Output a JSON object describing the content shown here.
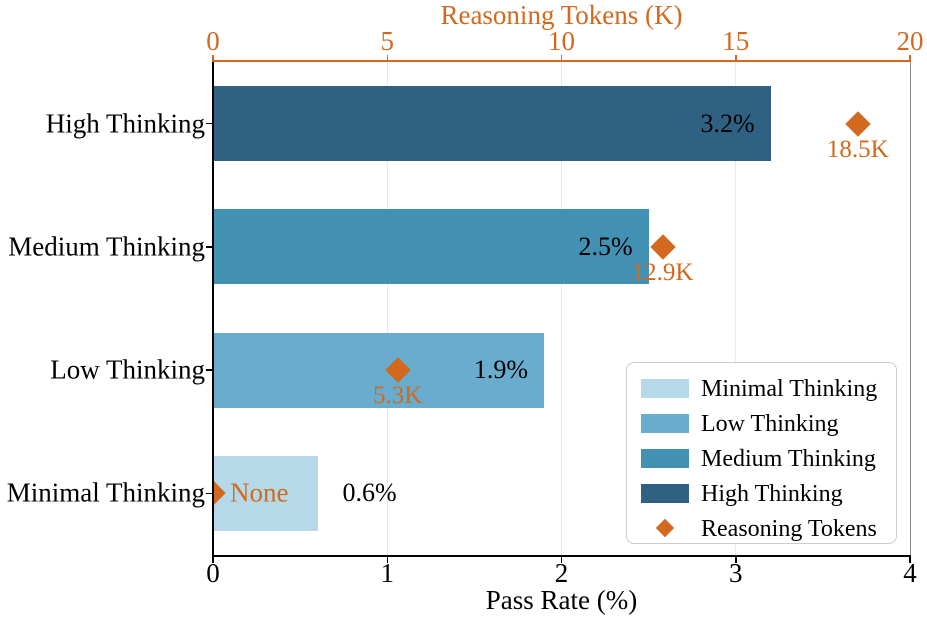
{
  "chart_data": {
    "type": "bar",
    "orientation": "horizontal",
    "title_top": "Reasoning Tokens (K)",
    "xlabel_bottom": "Pass Rate (%)",
    "rows": [
      {
        "category": "High Thinking",
        "pass_rate": 3.2,
        "pass_rate_label": "3.2%",
        "reasoning_tokens_k": 18.5,
        "tokens_label": "18.5K",
        "bar_color": "#2F6183"
      },
      {
        "category": "Medium Thinking",
        "pass_rate": 2.5,
        "pass_rate_label": "2.5%",
        "reasoning_tokens_k": 12.9,
        "tokens_label": "12.9K",
        "bar_color": "#4291B3"
      },
      {
        "category": "Low Thinking",
        "pass_rate": 1.9,
        "pass_rate_label": "1.9%",
        "reasoning_tokens_k": 5.3,
        "tokens_label": "5.3K",
        "bar_color": "#69ACCD"
      },
      {
        "category": "Minimal Thinking",
        "pass_rate": 0.6,
        "pass_rate_label": "0.6%",
        "reasoning_tokens_k": 0,
        "tokens_label": "None",
        "bar_color": "#B5D9E9"
      }
    ],
    "bottom_axis": {
      "min": 0,
      "max": 4,
      "tick_values": [
        0,
        1,
        2,
        3,
        4
      ],
      "tick_labels": [
        "0",
        "1",
        "2",
        "3",
        "4"
      ]
    },
    "top_axis": {
      "min": 0,
      "max": 20,
      "tick_values": [
        0,
        5,
        10,
        15,
        20
      ],
      "tick_labels": [
        "0",
        "5",
        "10",
        "15",
        "20"
      ]
    },
    "legend": [
      {
        "label": "Minimal Thinking",
        "marker": "square",
        "swatch": "#B5D9E9"
      },
      {
        "label": "Low Thinking",
        "marker": "square",
        "swatch": "#69ACCD"
      },
      {
        "label": "Medium Thinking",
        "marker": "square",
        "swatch": "#4291B3"
      },
      {
        "label": "High Thinking",
        "marker": "square",
        "swatch": "#2F6183"
      },
      {
        "label": "Reasoning Tokens",
        "marker": "diamond",
        "swatch": "#D2691E"
      }
    ],
    "colors": {
      "accent_orange": "#D2691E",
      "text": "#000000",
      "grid": "#E9E9E9",
      "left_bottom_spine": "#000000",
      "right_spine": "#8A8A8A",
      "legend_border": "#CCCCCC"
    }
  }
}
